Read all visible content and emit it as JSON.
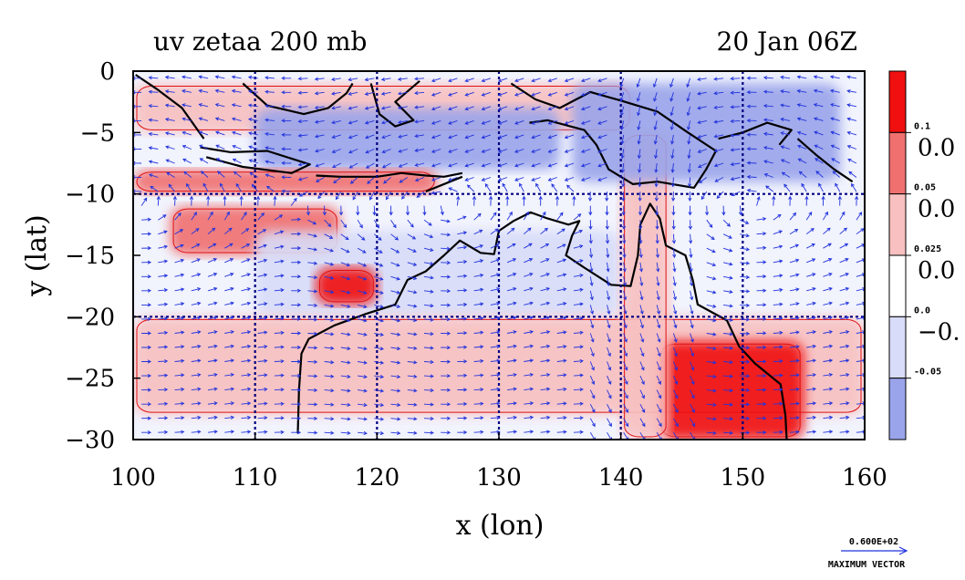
{
  "chart_data": {
    "type": "heatmap",
    "title_left": "uv zetaa 200 mb",
    "title_right": "20 Jan 06Z",
    "xlabel": "x (lon)",
    "ylabel": "y (lat)",
    "xlim": [
      100,
      160
    ],
    "ylim": [
      -30,
      0
    ],
    "x_ticks": [
      "100",
      "110",
      "120",
      "130",
      "140",
      "150",
      "160"
    ],
    "y_ticks": [
      "0",
      "−5",
      "−10",
      "−15",
      "−20",
      "−25",
      "−30"
    ],
    "grid": true,
    "grid_lon": [
      110,
      120,
      130,
      140,
      150
    ],
    "grid_lat": [
      -10,
      -20
    ],
    "colorbar": {
      "colors": [
        "#f01010",
        "#f07070",
        "#f8c0c0",
        "#ffffff",
        "#d8dcf8",
        "#9aa4ea"
      ],
      "small_labels": [
        "0.1",
        "0.05",
        "0.025",
        "0.0",
        "-0.05"
      ],
      "large_labels": [
        "0.0",
        "0.0",
        "0.0",
        "−0."
      ]
    },
    "vector_key": {
      "value": "0.600E+02",
      "label": "MAXIMUM VECTOR"
    },
    "colors": {
      "strong_positive": "#f01010",
      "positive": "#f07070",
      "weak_positive": "#f8c0c0",
      "neutral": "#ffffff",
      "weak_negative": "#d8dcf8",
      "negative": "#9aa4ea",
      "vectors": "#2233dd",
      "coast": "#000000",
      "grid": "#000080"
    },
    "fields": {
      "bands": [
        {
          "lat_from": -1,
          "lat_to": -5,
          "level": 1,
          "lon_from": 100,
          "lon_to": 141
        },
        {
          "lat_from": -3,
          "lat_to": -8,
          "level": -2,
          "lon_from": 110,
          "lon_to": 135
        },
        {
          "lat_from": -8,
          "lat_to": -10,
          "level": 2,
          "lon_from": 100,
          "lon_to": 125
        },
        {
          "lat_from": -11,
          "lat_to": -15,
          "level": 2,
          "lon_from": 103,
          "lon_to": 117
        },
        {
          "lat_from": -13,
          "lat_to": -20,
          "level": -1,
          "lon_from": 110,
          "lon_to": 140
        },
        {
          "lat_from": -16,
          "lat_to": -19,
          "level": 3,
          "lon_from": 115,
          "lon_to": 120
        },
        {
          "lat_from": -20,
          "lat_to": -28,
          "level": 1,
          "lon_from": 100,
          "lon_to": 160
        },
        {
          "lat_from": -22,
          "lat_to": -30,
          "level": 3,
          "lon_from": 143,
          "lon_to": 155
        },
        {
          "lat_from": -5,
          "lat_to": -30,
          "level": 1,
          "lon_from": 140,
          "lon_to": 144
        },
        {
          "lat_from": -1,
          "lat_to": -9,
          "level": -2,
          "lon_from": 136,
          "lon_to": 158
        }
      ],
      "vector_rows": 26,
      "vector_cols": 44
    }
  }
}
